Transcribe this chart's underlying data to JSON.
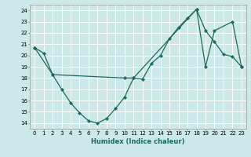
{
  "xlabel": "Humidex (Indice chaleur)",
  "bg_color": "#cce8e8",
  "line_color": "#1a6b5a",
  "grid_color": "#ffffff",
  "xlim": [
    -0.5,
    23.5
  ],
  "ylim": [
    13.5,
    24.5
  ],
  "xticks": [
    0,
    1,
    2,
    3,
    4,
    5,
    6,
    7,
    8,
    9,
    10,
    11,
    12,
    13,
    14,
    15,
    16,
    17,
    18,
    19,
    20,
    21,
    22,
    23
  ],
  "yticks": [
    14,
    15,
    16,
    17,
    18,
    19,
    20,
    21,
    22,
    23,
    24
  ],
  "curve1_x": [
    0,
    1,
    2,
    3,
    4,
    5,
    6,
    7,
    8,
    9,
    10,
    11,
    12,
    13,
    14,
    15,
    16,
    17,
    18,
    19,
    20,
    21,
    22,
    23
  ],
  "curve1_y": [
    20.7,
    20.2,
    18.3,
    17.0,
    15.8,
    14.9,
    14.2,
    14.0,
    14.4,
    15.3,
    16.3,
    18.0,
    17.9,
    19.3,
    20.0,
    21.5,
    22.5,
    23.3,
    24.1,
    22.2,
    21.2,
    20.1,
    19.9,
    19.0
  ],
  "curve2_x": [
    0,
    2,
    10,
    11,
    18,
    19,
    20,
    22,
    23
  ],
  "curve2_y": [
    20.7,
    18.3,
    18.0,
    18.0,
    24.1,
    19.0,
    22.2,
    23.0,
    19.0
  ]
}
